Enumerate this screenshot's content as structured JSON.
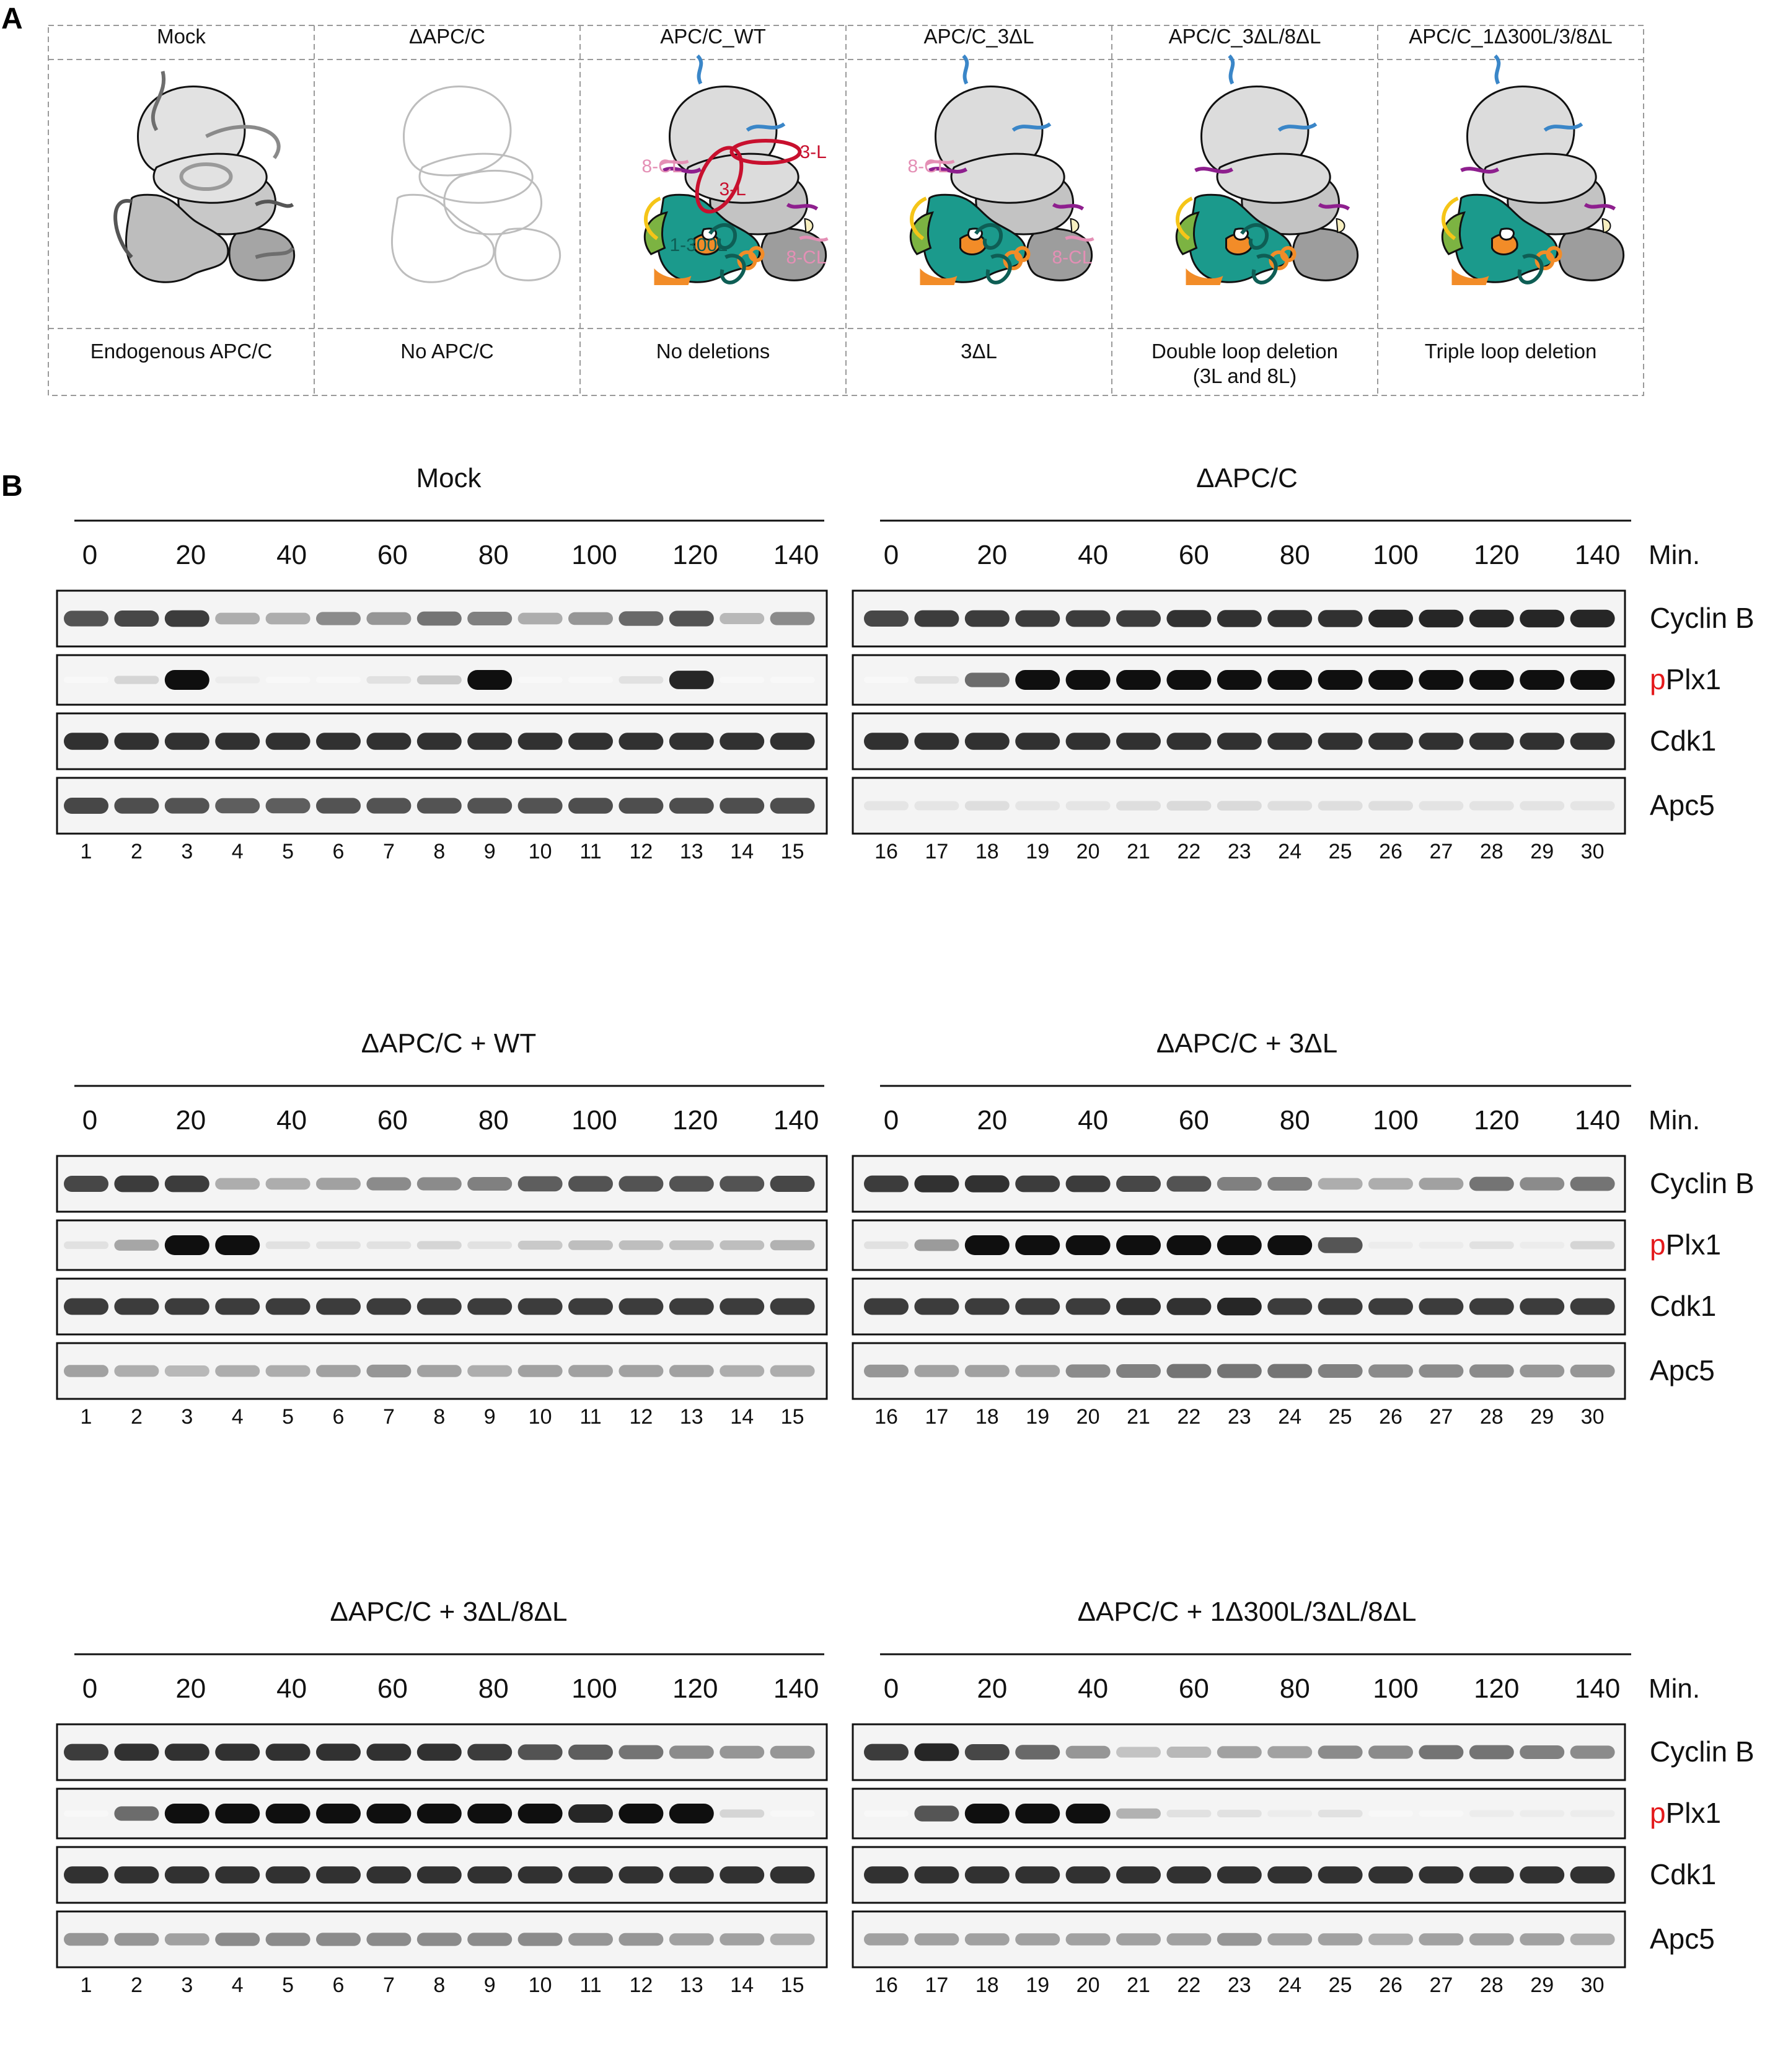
{
  "panel_a": {
    "letter": "A",
    "columns": [
      {
        "title": "Mock",
        "caption": [
          "Endogenous APC/C"
        ],
        "style": "mock"
      },
      {
        "title": "ΔAPC/C",
        "caption": [
          "No APC/C"
        ],
        "style": "empty"
      },
      {
        "title": "APC/C_WT",
        "caption": [
          "No deletions"
        ],
        "style": "wt"
      },
      {
        "title": "APC/C_3ΔL",
        "caption": [
          "3ΔL"
        ],
        "style": "d3"
      },
      {
        "title": "APC/C_3ΔL/8ΔL",
        "caption": [
          "Double loop deletion",
          "(3L and 8L)"
        ],
        "style": "d38"
      },
      {
        "title": "APC/C_1Δ300L/3/8ΔL",
        "caption": [
          "Triple loop deletion"
        ],
        "style": "d138"
      }
    ],
    "loop_labels": {
      "l3": "3-L",
      "l8": "8-CL",
      "l1": "1-300L"
    },
    "colors": {
      "lobe_light": "#dcdcdc",
      "lobe_mid": "#c3c3c3",
      "lobe_dark": "#9d9d9d",
      "teal": "#1b9a8c",
      "green": "#7cb342",
      "orange": "#f28c28",
      "yellow": "#f5c518",
      "blue": "#3a86c8",
      "purple": "#8e1f8e",
      "red": "#c8102e",
      "pink": "#e48fb5",
      "dark_teal": "#0e5e55",
      "cream": "#f7efc0"
    }
  },
  "panel_b": {
    "letter": "B",
    "time_ticks": [
      "0",
      "20",
      "40",
      "60",
      "80",
      "100",
      "120",
      "140"
    ],
    "time_unit": "Min.",
    "proteins": [
      {
        "name": "Cyclin B",
        "prefix": ""
      },
      {
        "name": "Plx1",
        "prefix": "p"
      },
      {
        "name": "Cdk1",
        "prefix": ""
      },
      {
        "name": "Apc5",
        "prefix": ""
      }
    ],
    "prefix_color": "#e41a1c",
    "lanes_left": [
      "1",
      "2",
      "3",
      "4",
      "5",
      "6",
      "7",
      "8",
      "9",
      "10",
      "11",
      "12",
      "13",
      "14",
      "15"
    ],
    "lanes_right": [
      "16",
      "17",
      "18",
      "19",
      "20",
      "21",
      "22",
      "23",
      "24",
      "25",
      "26",
      "27",
      "28",
      "29",
      "30"
    ],
    "blots": [
      {
        "left_title": "Mock",
        "right_title": "ΔAPC/C",
        "cyclinb_left": [
          0.7,
          0.75,
          0.8,
          0.3,
          0.3,
          0.45,
          0.4,
          0.55,
          0.5,
          0.3,
          0.4,
          0.6,
          0.7,
          0.25,
          0.45
        ],
        "cyclinb_right": [
          0.75,
          0.8,
          0.8,
          0.8,
          0.8,
          0.8,
          0.85,
          0.85,
          0.85,
          0.85,
          0.9,
          0.9,
          0.9,
          0.9,
          0.9
        ],
        "pplx1_left": [
          0,
          0.15,
          1,
          0.05,
          0,
          0,
          0.1,
          0.2,
          1,
          0,
          0,
          0.1,
          0.9,
          0,
          0
        ],
        "pplx1_right": [
          0,
          0.1,
          0.6,
          1,
          1,
          1,
          1,
          1,
          1,
          1,
          1,
          1,
          1,
          1,
          1
        ],
        "cdk1_left": [
          0.85,
          0.85,
          0.85,
          0.85,
          0.85,
          0.85,
          0.85,
          0.85,
          0.85,
          0.85,
          0.85,
          0.85,
          0.85,
          0.85,
          0.85
        ],
        "cdk1_right": [
          0.85,
          0.85,
          0.85,
          0.85,
          0.85,
          0.85,
          0.85,
          0.85,
          0.85,
          0.85,
          0.85,
          0.85,
          0.85,
          0.85,
          0.85
        ],
        "apc5_left": [
          0.75,
          0.72,
          0.7,
          0.65,
          0.65,
          0.7,
          0.7,
          0.7,
          0.7,
          0.7,
          0.72,
          0.72,
          0.72,
          0.72,
          0.72
        ],
        "apc5_right": [
          0.05,
          0.05,
          0.08,
          0.05,
          0.05,
          0.08,
          0.1,
          0.1,
          0.08,
          0.08,
          0.08,
          0.06,
          0.06,
          0.06,
          0.05
        ]
      },
      {
        "left_title": "ΔAPC/C + WT",
        "right_title": "ΔAPC/C + 3ΔL",
        "cyclinb_left": [
          0.75,
          0.8,
          0.8,
          0.3,
          0.3,
          0.35,
          0.45,
          0.45,
          0.5,
          0.65,
          0.7,
          0.7,
          0.7,
          0.7,
          0.75
        ],
        "cyclinb_right": [
          0.8,
          0.85,
          0.85,
          0.8,
          0.8,
          0.75,
          0.7,
          0.5,
          0.5,
          0.3,
          0.3,
          0.35,
          0.55,
          0.45,
          0.55
        ],
        "pplx1_left": [
          0.1,
          0.35,
          1,
          1,
          0.1,
          0.1,
          0.1,
          0.15,
          0.1,
          0.2,
          0.25,
          0.25,
          0.25,
          0.25,
          0.3
        ],
        "pplx1_right": [
          0.1,
          0.4,
          1,
          1,
          1,
          1,
          1,
          1,
          1,
          0.7,
          0.05,
          0.05,
          0.1,
          0.05,
          0.15
        ],
        "cdk1_left": [
          0.8,
          0.8,
          0.8,
          0.8,
          0.8,
          0.8,
          0.8,
          0.8,
          0.8,
          0.8,
          0.8,
          0.8,
          0.8,
          0.8,
          0.8
        ],
        "cdk1_right": [
          0.8,
          0.8,
          0.8,
          0.8,
          0.8,
          0.85,
          0.85,
          0.9,
          0.8,
          0.8,
          0.8,
          0.8,
          0.8,
          0.8,
          0.8
        ],
        "apc5_left": [
          0.35,
          0.3,
          0.25,
          0.3,
          0.3,
          0.35,
          0.4,
          0.35,
          0.3,
          0.35,
          0.35,
          0.35,
          0.35,
          0.3,
          0.3
        ],
        "apc5_right": [
          0.4,
          0.35,
          0.35,
          0.35,
          0.45,
          0.5,
          0.55,
          0.55,
          0.55,
          0.5,
          0.45,
          0.45,
          0.45,
          0.4,
          0.4
        ]
      },
      {
        "left_title": "ΔAPC/C + 3ΔL/8ΔL",
        "right_title": "ΔAPC/C + 1Δ300L/3ΔL/8ΔL",
        "cyclinb_left": [
          0.8,
          0.85,
          0.85,
          0.85,
          0.85,
          0.85,
          0.85,
          0.85,
          0.8,
          0.7,
          0.65,
          0.55,
          0.45,
          0.4,
          0.4
        ],
        "cyclinb_right": [
          0.8,
          0.9,
          0.75,
          0.6,
          0.4,
          0.2,
          0.25,
          0.35,
          0.35,
          0.45,
          0.45,
          0.55,
          0.55,
          0.5,
          0.45
        ],
        "pplx1_left": [
          0,
          0.6,
          1,
          1,
          1,
          1,
          1,
          1,
          1,
          1,
          0.9,
          1,
          1,
          0.15,
          0
        ],
        "pplx1_right": [
          0,
          0.7,
          1,
          1,
          1,
          0.3,
          0.1,
          0.1,
          0.05,
          0.1,
          0,
          0,
          0.05,
          0.05,
          0.05
        ],
        "cdk1_left": [
          0.85,
          0.85,
          0.85,
          0.85,
          0.85,
          0.85,
          0.85,
          0.85,
          0.85,
          0.85,
          0.85,
          0.85,
          0.85,
          0.85,
          0.85
        ],
        "cdk1_right": [
          0.85,
          0.85,
          0.85,
          0.85,
          0.85,
          0.85,
          0.85,
          0.85,
          0.85,
          0.85,
          0.85,
          0.85,
          0.85,
          0.85,
          0.85
        ],
        "apc5_left": [
          0.4,
          0.4,
          0.35,
          0.45,
          0.45,
          0.45,
          0.45,
          0.45,
          0.45,
          0.45,
          0.4,
          0.4,
          0.35,
          0.35,
          0.3
        ],
        "apc5_right": [
          0.35,
          0.35,
          0.35,
          0.35,
          0.35,
          0.35,
          0.35,
          0.4,
          0.35,
          0.35,
          0.3,
          0.35,
          0.35,
          0.35,
          0.3
        ]
      }
    ]
  }
}
